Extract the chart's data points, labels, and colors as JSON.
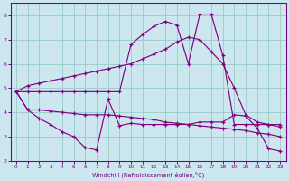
{
  "xlabel": "Windchill (Refroidissement éolien,°C)",
  "xlim": [
    -0.5,
    23.5
  ],
  "ylim": [
    2.0,
    8.5
  ],
  "yticks": [
    2,
    3,
    4,
    5,
    6,
    7,
    8
  ],
  "xticks": [
    0,
    1,
    2,
    3,
    4,
    5,
    6,
    7,
    8,
    9,
    10,
    11,
    12,
    13,
    14,
    15,
    16,
    17,
    18,
    19,
    20,
    21,
    22,
    23
  ],
  "bg_color": "#cce8ee",
  "line_color": "#880088",
  "grid_color": "#99cccc",
  "line1_x": [
    0,
    1,
    2,
    3,
    4,
    5,
    6,
    7,
    8,
    9,
    10,
    11,
    12,
    13,
    14,
    15,
    16,
    17,
    18,
    19,
    20,
    21,
    22,
    23
  ],
  "line1_y": [
    4.85,
    5.1,
    5.2,
    5.3,
    5.4,
    5.5,
    5.6,
    5.7,
    5.8,
    5.9,
    6.0,
    6.2,
    6.4,
    6.6,
    6.9,
    7.1,
    7.0,
    6.5,
    6.0,
    5.0,
    3.9,
    3.6,
    3.5,
    3.4
  ],
  "line2_x": [
    0,
    1,
    2,
    3,
    4,
    5,
    6,
    7,
    8,
    9,
    10,
    11,
    12,
    13,
    14,
    15,
    16,
    17,
    18,
    19,
    20,
    21,
    22,
    23
  ],
  "line2_y": [
    4.85,
    4.1,
    3.75,
    3.5,
    3.2,
    3.0,
    2.55,
    2.45,
    4.55,
    3.45,
    3.55,
    3.5,
    3.5,
    3.5,
    3.5,
    3.5,
    3.6,
    3.6,
    3.6,
    3.9,
    3.85,
    3.35,
    2.5,
    2.4
  ],
  "line3_x": [
    0,
    1,
    2,
    3,
    4,
    5,
    6,
    7,
    8,
    9,
    10,
    11,
    12,
    13,
    14,
    15,
    16,
    17,
    18,
    19,
    20,
    21,
    22,
    23
  ],
  "line3_y": [
    4.85,
    4.1,
    4.1,
    4.05,
    4.0,
    3.95,
    3.9,
    3.9,
    3.9,
    3.85,
    3.8,
    3.75,
    3.7,
    3.6,
    3.55,
    3.5,
    3.45,
    3.4,
    3.35,
    3.3,
    3.25,
    3.15,
    3.1,
    3.0
  ],
  "line4_x": [
    0,
    1,
    2,
    3,
    4,
    5,
    6,
    7,
    8,
    9,
    10,
    11,
    12,
    13,
    14,
    15,
    16,
    17,
    18,
    19,
    20,
    21,
    22,
    23
  ],
  "line4_y": [
    4.85,
    4.85,
    4.85,
    4.85,
    4.85,
    4.85,
    4.85,
    4.85,
    4.85,
    4.85,
    6.8,
    7.2,
    7.55,
    7.75,
    7.6,
    6.0,
    8.05,
    8.05,
    6.35,
    3.5,
    3.5,
    3.5,
    3.5,
    3.5
  ]
}
